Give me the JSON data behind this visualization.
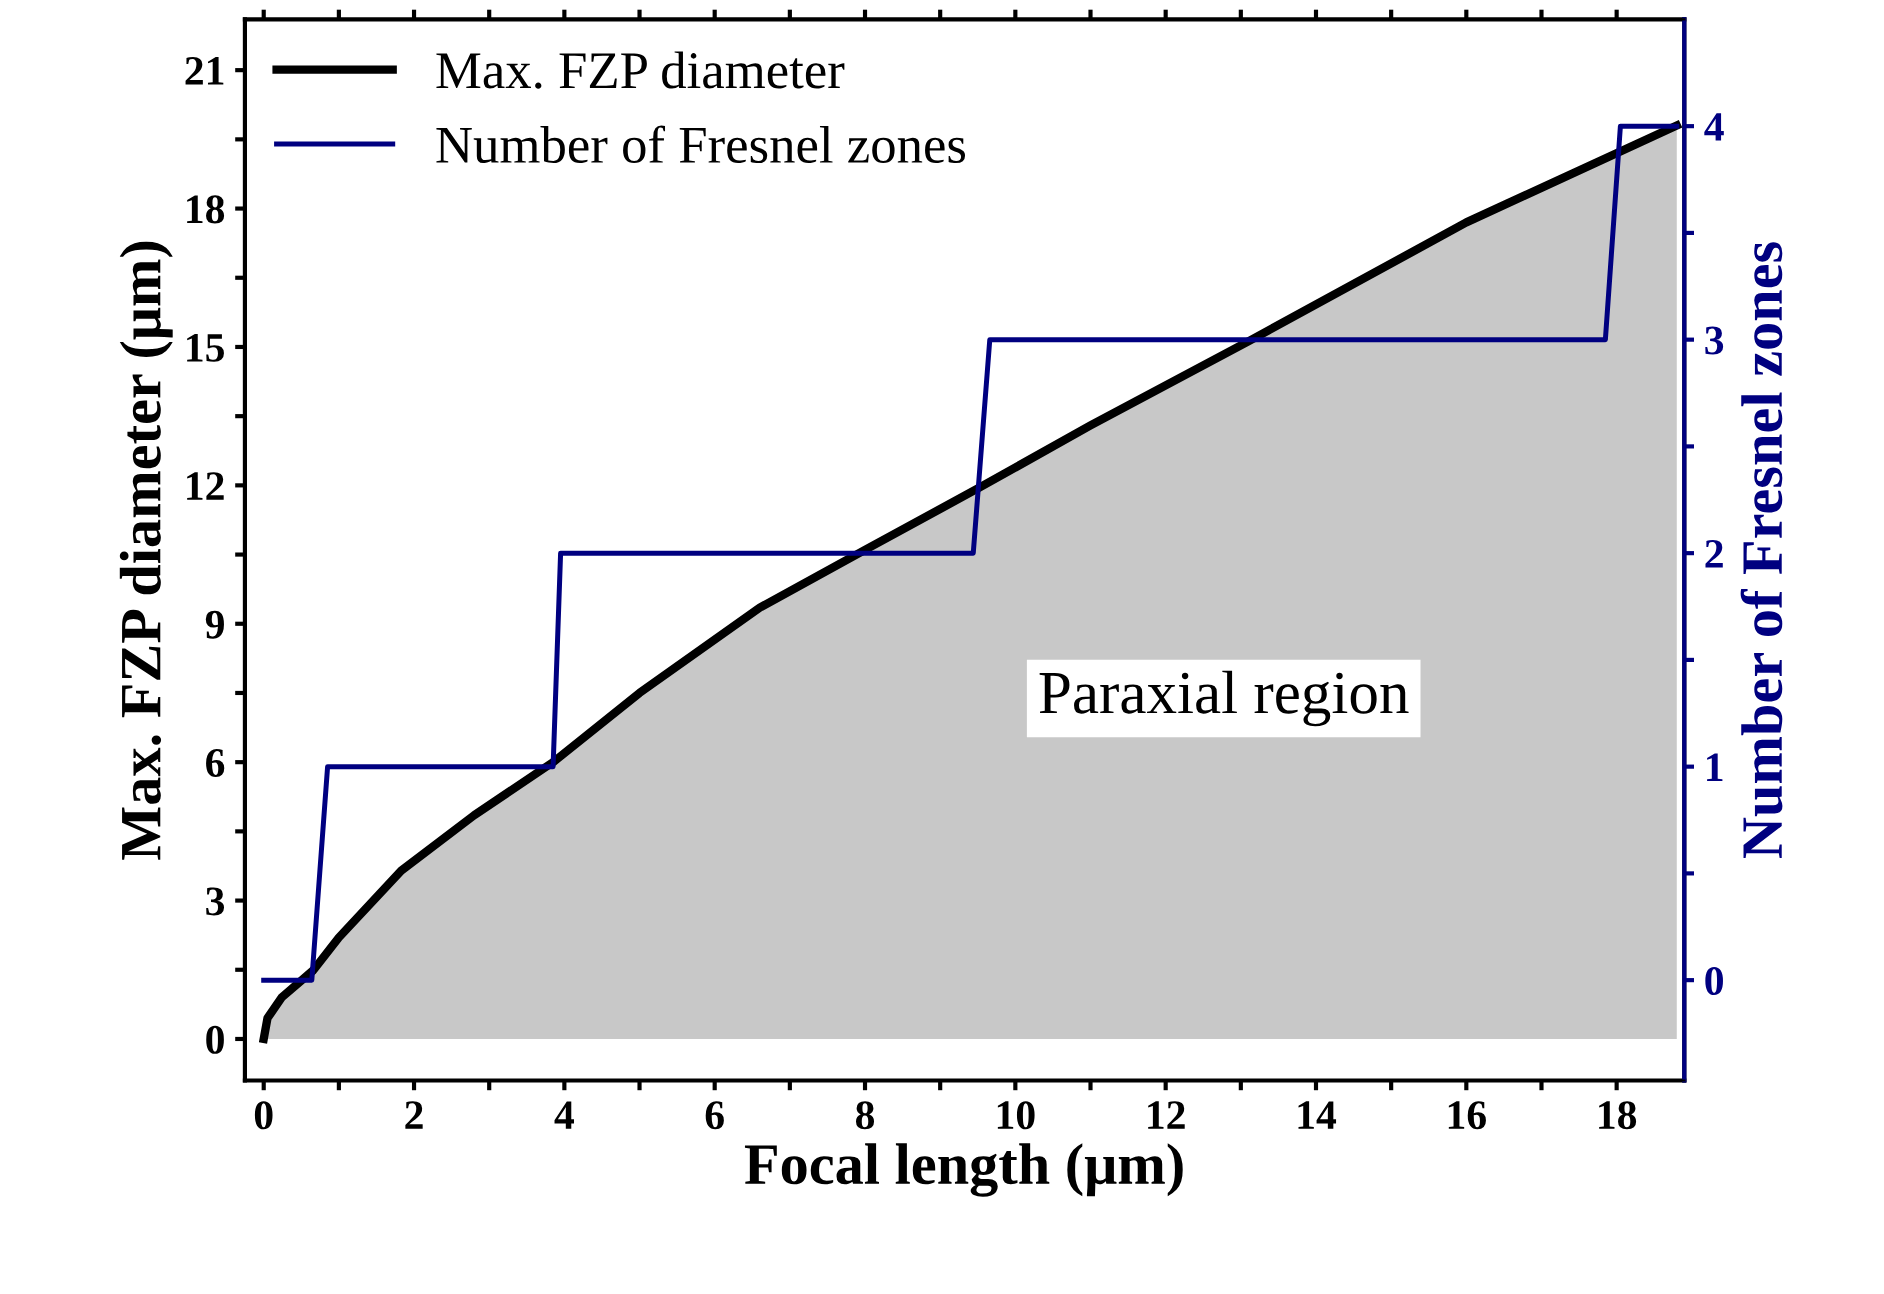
{
  "chart_data": {
    "type": "area",
    "xlabel": "Focal length (μm)",
    "ylabel": "Max. FZP diameter (μm)",
    "y2label": "Number of Fresnel zones",
    "series": [
      {
        "name": "Max. FZP diameter",
        "color": "#000000",
        "x": [
          0,
          0.05,
          0.24,
          0.66,
          1.0,
          1.83,
          2.8,
          3.85,
          5.0,
          6.6,
          8.0,
          9.52,
          11.0,
          13.1,
          16.0,
          18.8
        ],
        "values": [
          0,
          0.45,
          0.9,
          1.49,
          2.2,
          3.65,
          4.85,
          6.0,
          7.5,
          9.35,
          10.6,
          11.95,
          13.3,
          15.12,
          17.7,
          19.8
        ]
      },
      {
        "name": "Number of Fresnel zones",
        "type": "line",
        "axis": "y2",
        "color": "#000080",
        "x": [
          0,
          0.64,
          0.85,
          3.85,
          3.95,
          9.44,
          9.66,
          17.85,
          18.05,
          18.8
        ],
        "values": [
          0,
          0,
          1,
          1,
          2,
          2,
          3,
          3,
          4,
          4
        ]
      }
    ],
    "xlim": [
      -0.25,
      18.9
    ],
    "xticks": [
      0,
      {
        "value": 1,
        "label": null
      },
      2,
      {
        "value": 3,
        "label": null
      },
      4,
      {
        "value": 5,
        "label": null
      },
      6,
      {
        "value": 7,
        "label": null
      },
      8,
      {
        "value": 9,
        "label": null
      },
      10,
      {
        "value": 11,
        "label": null
      },
      12,
      {
        "value": 13,
        "label": null
      },
      14,
      {
        "value": 15,
        "label": null
      },
      16,
      {
        "value": 17,
        "label": null
      },
      18
    ],
    "ylim": [
      -0.9,
      22.1
    ],
    "yticks": [
      0,
      {
        "value": 1.5,
        "label": null
      },
      3,
      {
        "value": 4.5,
        "label": null
      },
      6,
      {
        "value": 7.5,
        "label": null
      },
      9,
      {
        "value": 10.5,
        "label": null
      },
      12,
      {
        "value": 13.5,
        "label": null
      },
      15,
      {
        "value": 16.5,
        "label": null
      },
      18,
      {
        "value": 19.5,
        "label": null
      },
      21
    ],
    "y2lim": [
      -0.47,
      4.5
    ],
    "y2ticks": [
      0,
      {
        "value": 0.5,
        "label": null
      },
      1,
      {
        "value": 1.5,
        "label": null
      },
      2,
      {
        "value": 2.5,
        "label": null
      },
      3,
      {
        "value": 3.5,
        "label": null
      },
      4
    ],
    "annotations": [
      "Paraxial region"
    ],
    "legend": "top left",
    "grid": false
  }
}
